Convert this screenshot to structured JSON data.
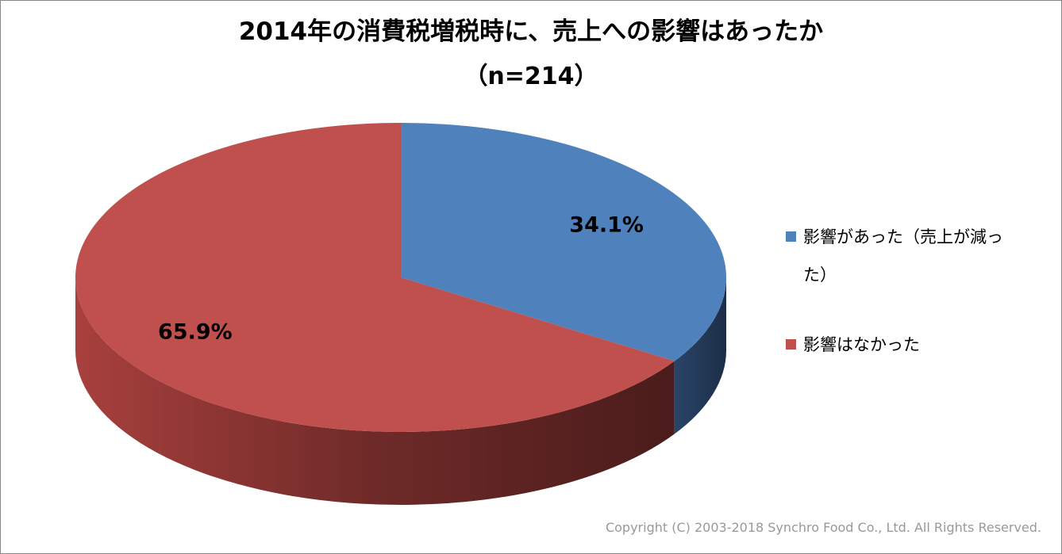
{
  "chart_data": {
    "type": "pie3d",
    "title": "2014年の消費税増税時に、売上への影響はあったか",
    "subtitle": "（n=214）",
    "categories": [
      "影響があった（売上が減った）",
      "影響はなかった"
    ],
    "values": [
      34.1,
      65.9
    ],
    "value_labels": [
      "34.1%",
      "65.9%"
    ],
    "colors": [
      "#4f81bd",
      "#c0504d"
    ],
    "legend": "right",
    "footer": "Copyright (C) 2003-2018  Synchro Food Co., Ltd. All Rights Reserved."
  }
}
